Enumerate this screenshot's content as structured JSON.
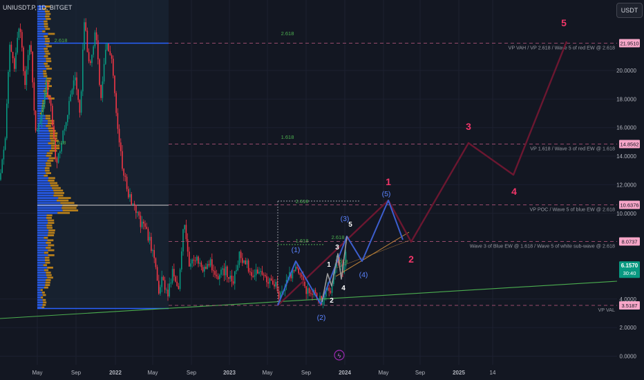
{
  "header": {
    "symbol": "UNIUSDT.P, 1D, BITGET",
    "currency_button": "USDT"
  },
  "price_scale": {
    "ticks": [
      "20.0000",
      "18.0000",
      "16.0000",
      "14.0000",
      "12.0000",
      "10.0000",
      "4.0000",
      "2.0000",
      "0.0000"
    ],
    "current_price": "6.1570",
    "countdown": "30:40",
    "current_color": "#089981"
  },
  "time_axis": {
    "labels": [
      "May",
      "Sep",
      "2022",
      "May",
      "Sep",
      "2023",
      "May",
      "Sep",
      "2024",
      "May",
      "Sep",
      "2025",
      "14"
    ]
  },
  "levels": [
    {
      "value": "21.9510",
      "annotation": "VP VAH / VP 2.618 / Wave 5 of red EW @ 2.618",
      "fib": "2.618"
    },
    {
      "value": "14.8562",
      "annotation": "VP 1.618 / Wave 3 of red EW @ 1.618",
      "fib": "1.618"
    },
    {
      "value": "10.6376",
      "annotation": "VP POC / Wave 5 of blue EW @ 2.618",
      "fib": "2.618"
    },
    {
      "value": "8.0737",
      "annotation": "Wave 3 of Blue EW @ 1.618 / Wave 5 of white sub-wave @ 2.618",
      "fib": ""
    },
    {
      "value": "3.5187",
      "annotation": "VP VAL",
      "fib": ""
    }
  ],
  "vp_fib_labels": [
    "2.618",
    "1.618"
  ],
  "blue_fib_labels": [
    "1.618",
    "2.618",
    "1.618"
  ],
  "wave_labels": {
    "red": [
      "1",
      "2",
      "3",
      "4",
      "5"
    ],
    "blue": [
      "(1)",
      "(2)",
      "(3)",
      "(4)",
      "(5)"
    ],
    "white": [
      "1",
      "2",
      "3",
      "4",
      "5"
    ]
  },
  "colors": {
    "red_wave": "#f23669",
    "blue_wave": "#2962ff",
    "level_pink": "#f7a6c8",
    "green_trend": "#4caf50",
    "vp_blue": "#2962ff",
    "vp_orange": "#c98a1a"
  },
  "chart_data": {
    "type": "candlestick",
    "title": "UNIUSDT.P, 1D, BITGET",
    "ylim": [
      0,
      24
    ],
    "x_labels": [
      "May",
      "Sep",
      "2022",
      "May",
      "Sep",
      "2023",
      "May",
      "Sep",
      "2024",
      "May",
      "Sep",
      "2025",
      "14"
    ],
    "horizontal_levels": [
      21.951,
      14.8562,
      10.6376,
      8.0737,
      3.5187
    ],
    "last_price": 6.157,
    "projections": {
      "red_elliott_wave": [
        {
          "label": "1",
          "price": 10.9
        },
        {
          "label": "2",
          "price": 8.07
        },
        {
          "label": "3",
          "price": 14.86
        },
        {
          "label": "4",
          "price": 12.6
        },
        {
          "label": "5",
          "price": 21.95
        }
      ],
      "blue_elliott_wave": [
        {
          "label": "(1)",
          "price": 6.7
        },
        {
          "label": "(2)",
          "price": 4.0
        },
        {
          "label": "(3)",
          "price": 8.07
        },
        {
          "label": "(4)",
          "price": 5.9
        },
        {
          "label": "(5)",
          "price": 10.64
        }
      ]
    }
  }
}
